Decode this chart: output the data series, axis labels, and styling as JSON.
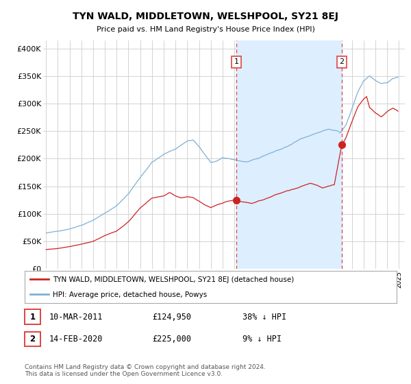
{
  "title": "TYN WALD, MIDDLETOWN, WELSHPOOL, SY21 8EJ",
  "subtitle": "Price paid vs. HM Land Registry's House Price Index (HPI)",
  "ylabel_ticks": [
    "£0",
    "£50K",
    "£100K",
    "£150K",
    "£200K",
    "£250K",
    "£300K",
    "£350K",
    "£400K"
  ],
  "ytick_values": [
    0,
    50000,
    100000,
    150000,
    200000,
    250000,
    300000,
    350000,
    400000
  ],
  "ylim": [
    0,
    415000
  ],
  "xlim_left": 1994.75,
  "xlim_right": 2025.5,
  "hpi_color": "#7eb0d5",
  "property_color": "#cc2222",
  "vline_color": "#dd4444",
  "shade_color": "#ddeeff",
  "grid_color": "#cccccc",
  "bg_color": "#ffffff",
  "legend_border_color": "#aaaaaa",
  "point1_x": 2011.19,
  "point1_y": 124950,
  "point1_label": "1",
  "point1_date": "10-MAR-2011",
  "point1_price": "£124,950",
  "point1_hpi": "38% ↓ HPI",
  "point2_x": 2020.12,
  "point2_y": 225000,
  "point2_label": "2",
  "point2_date": "14-FEB-2020",
  "point2_price": "£225,000",
  "point2_hpi": "9% ↓ HPI",
  "legend_line1": "TYN WALD, MIDDLETOWN, WELSHPOOL, SY21 8EJ (detached house)",
  "legend_line2": "HPI: Average price, detached house, Powys",
  "footer": "Contains HM Land Registry data © Crown copyright and database right 2024.\nThis data is licensed under the Open Government Licence v3.0."
}
